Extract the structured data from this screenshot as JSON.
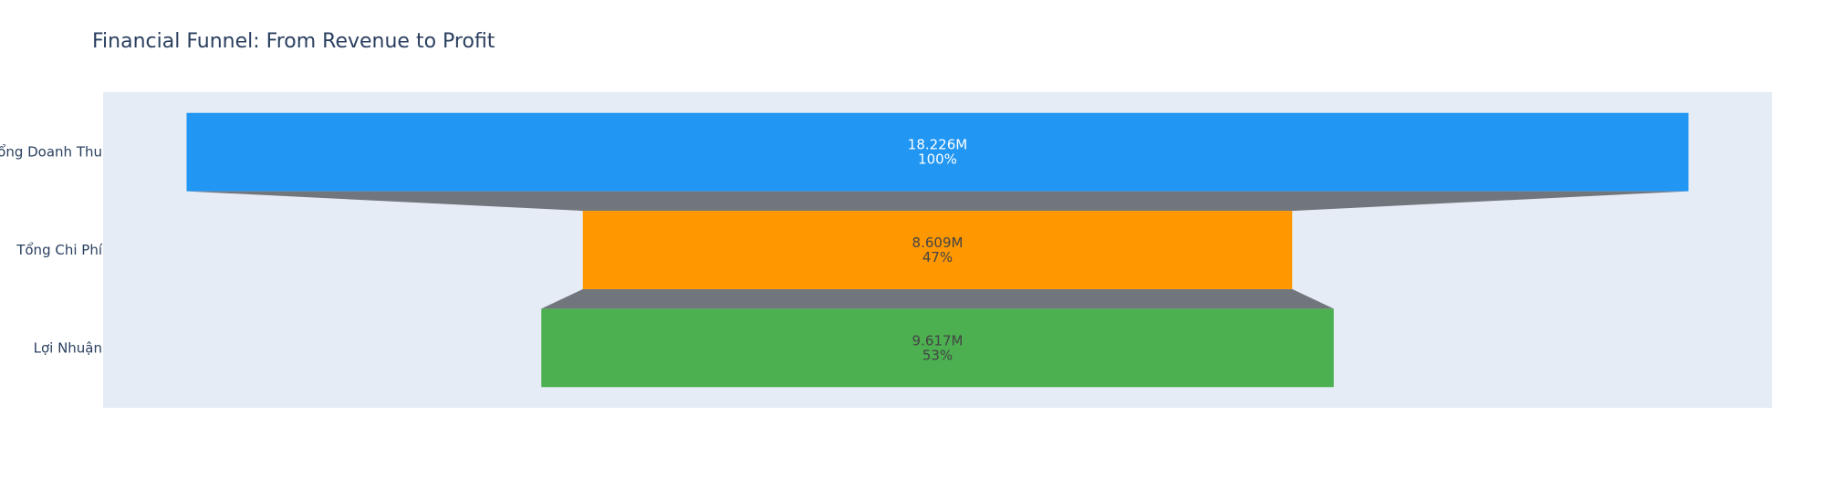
{
  "chart_data": {
    "type": "funnel",
    "title": "Financial Funnel: From Revenue to Profit",
    "categories": [
      "Tổng Doanh Thu",
      "Tổng Chi Phí",
      "Lợi Nhuận"
    ],
    "values": [
      18226000,
      8609000,
      9617000
    ],
    "text_values": [
      "18.226M",
      "8.609M",
      "9.617M"
    ],
    "percent_labels": [
      "100%",
      "47%",
      "53%"
    ],
    "colors": [
      "#2196F3",
      "#FF9800",
      "#4CAF50"
    ],
    "label_colors": [
      "#ffffff",
      "#444444",
      "#444444"
    ],
    "connector_color": "#71757c",
    "plot_background": "#e5ecf6",
    "xlabel": "",
    "ylabel": ""
  }
}
